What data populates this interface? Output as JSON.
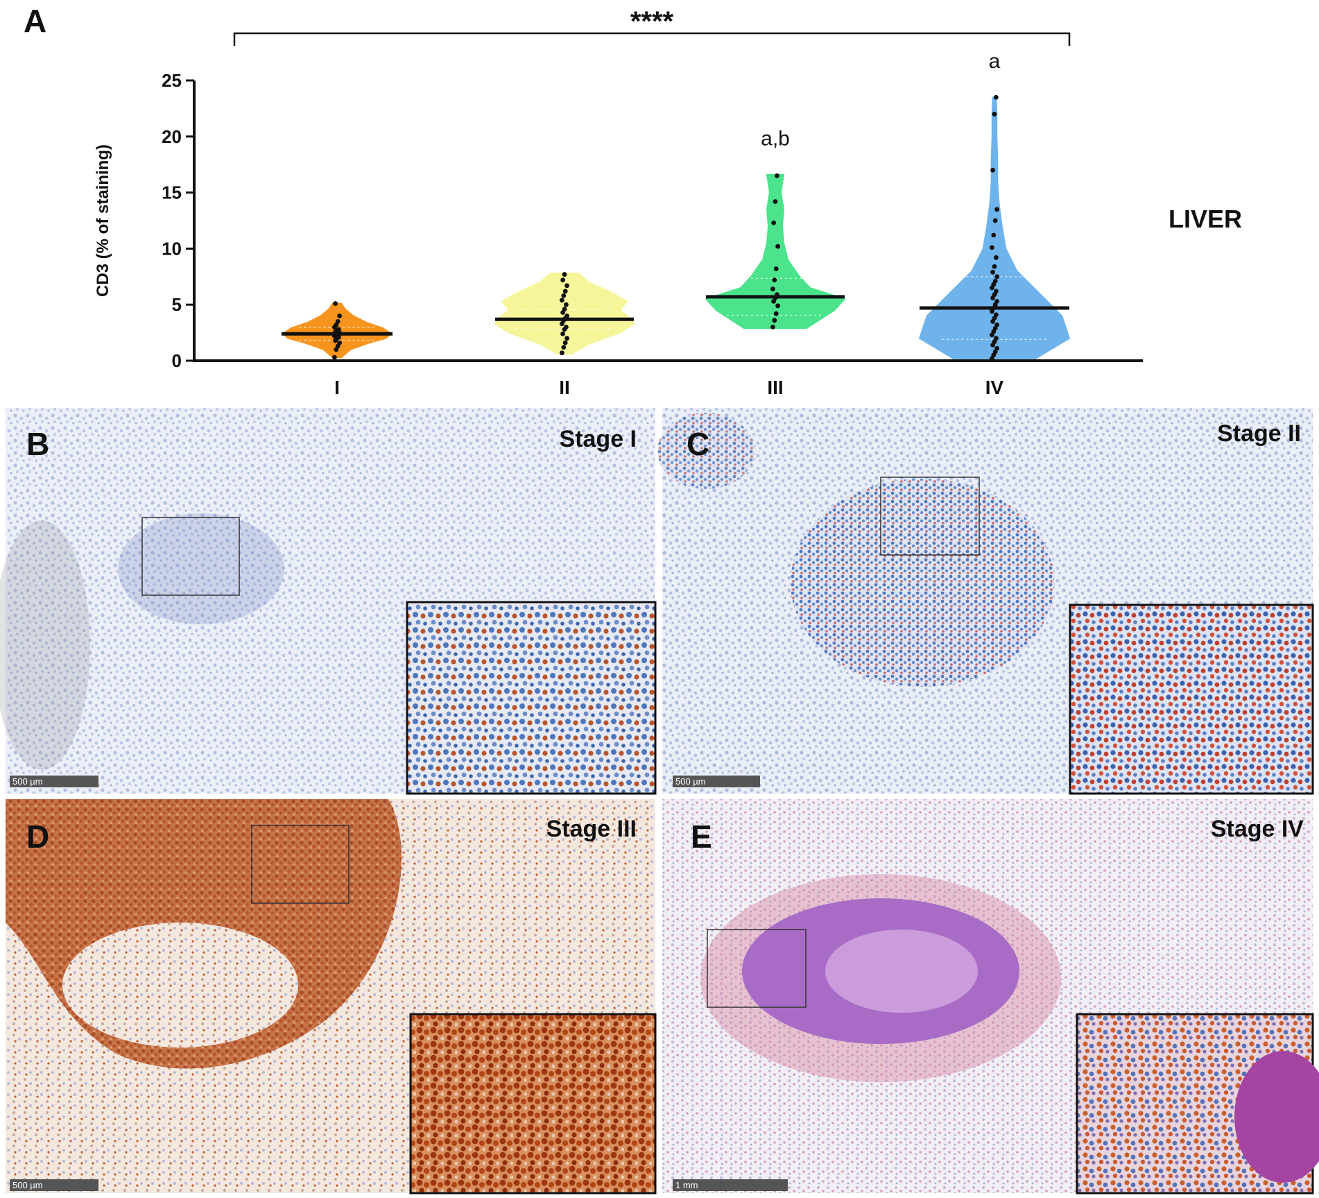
{
  "panel_labels": {
    "a": "A",
    "b": "B",
    "c": "C",
    "d": "D",
    "e": "E"
  },
  "significance": "****",
  "organ_label": "LIVER",
  "chart_data": {
    "type": "violin",
    "ylabel": "CD3 (% of staining)",
    "ylim": [
      0,
      25
    ],
    "yticks": [
      0,
      5,
      10,
      15,
      20,
      25
    ],
    "categories": [
      "I",
      "II",
      "III",
      "IV"
    ],
    "colors": [
      "#f7941d",
      "#f7f59a",
      "#4be38b",
      "#6fb3ec"
    ],
    "medians": [
      2.4,
      3.7,
      5.7,
      4.7
    ],
    "annotations": [
      "",
      "",
      "a,b",
      "a"
    ],
    "violin_profiles": [
      {
        "y": [
          0.3,
          1.0,
          1.6,
          2.0,
          2.4,
          2.9,
          3.4,
          4.0,
          4.6,
          5.1
        ],
        "density": [
          0.08,
          0.25,
          0.6,
          0.9,
          1.0,
          0.85,
          0.55,
          0.3,
          0.15,
          0.08
        ]
      },
      {
        "y": [
          0.6,
          1.5,
          2.5,
          3.3,
          3.8,
          4.5,
          5.3,
          6.0,
          7.0,
          7.8
        ],
        "density": [
          0.1,
          0.35,
          0.8,
          1.0,
          0.95,
          0.8,
          0.9,
          0.7,
          0.35,
          0.2
        ]
      },
      {
        "y": [
          2.9,
          3.5,
          4.5,
          5.5,
          6.5,
          7.5,
          9.0,
          10.5,
          12.0,
          13.5,
          15.0,
          16.6
        ],
        "density": [
          0.45,
          0.6,
          0.85,
          1.0,
          0.5,
          0.35,
          0.18,
          0.12,
          0.1,
          0.12,
          0.08,
          0.12
        ]
      },
      {
        "y": [
          0.2,
          1.0,
          2.0,
          3.0,
          4.0,
          5.0,
          6.0,
          7.0,
          8.0,
          10.0,
          12.0,
          14.0,
          16.0,
          18.0,
          20.0,
          22.0,
          23.5
        ],
        "density": [
          0.55,
          0.75,
          1.0,
          0.95,
          0.9,
          0.75,
          0.6,
          0.45,
          0.3,
          0.15,
          0.1,
          0.06,
          0.04,
          0.04,
          0.03,
          0.03,
          0.02
        ]
      }
    ],
    "points": [
      [
        0.3,
        1.0,
        1.3,
        1.6,
        1.8,
        2.0,
        2.1,
        2.2,
        2.3,
        2.4,
        2.5,
        2.6,
        2.7,
        2.8,
        3.0,
        3.2,
        3.5,
        4.0,
        5.1
      ],
      [
        0.7,
        1.2,
        1.6,
        2.0,
        2.4,
        2.8,
        3.0,
        3.3,
        3.6,
        3.8,
        4.0,
        4.3,
        4.6,
        5.0,
        5.4,
        5.8,
        6.2,
        6.7,
        7.2,
        7.7
      ],
      [
        3.0,
        3.6,
        4.2,
        4.9,
        5.3,
        5.6,
        5.9,
        6.4,
        7.2,
        8.2,
        10.2,
        12.3,
        14.2,
        16.5
      ],
      [
        0.2,
        0.5,
        0.8,
        1.1,
        1.4,
        1.7,
        2.0,
        2.3,
        2.6,
        2.9,
        3.2,
        3.5,
        3.8,
        4.1,
        4.4,
        4.7,
        5.0,
        5.3,
        5.6,
        5.9,
        6.2,
        6.5,
        6.8,
        7.1,
        7.5,
        7.9,
        8.4,
        9.2,
        10.1,
        11.2,
        12.5,
        13.5,
        17.0,
        22.0,
        23.5
      ]
    ]
  },
  "micrographs": [
    {
      "letter": "B",
      "stage": "Stage I",
      "scale": "500 µm",
      "theme": "stage1"
    },
    {
      "letter": "C",
      "stage": "Stage II",
      "scale": "500 µm",
      "theme": "stage2"
    },
    {
      "letter": "D",
      "stage": "Stage III",
      "scale": "500 µm",
      "theme": "stage3"
    },
    {
      "letter": "E",
      "stage": "Stage IV",
      "scale": "1 mm",
      "theme": "stage4"
    }
  ]
}
